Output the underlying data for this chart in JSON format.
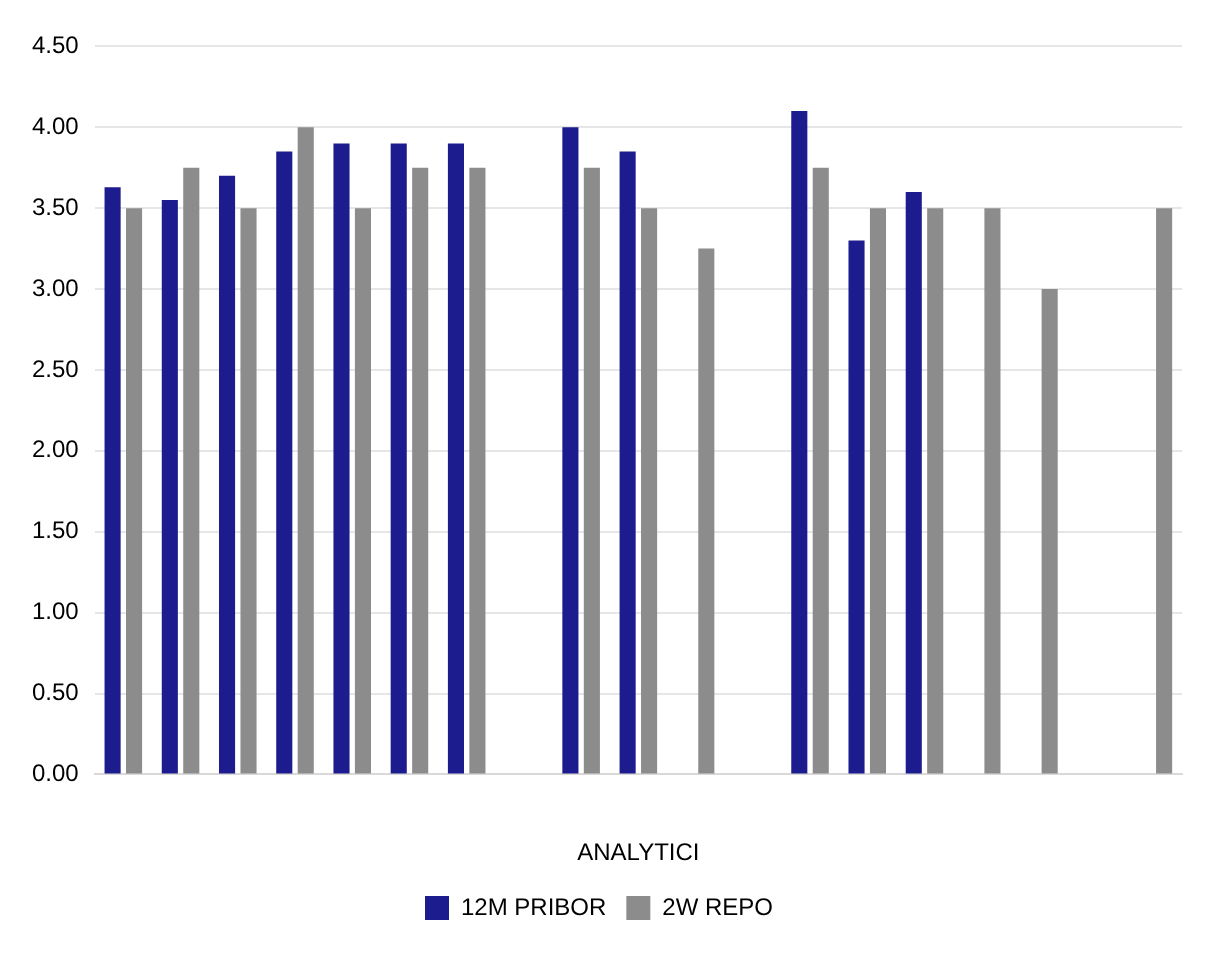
{
  "chart_data": {
    "type": "bar",
    "xlabel": "ANALYTICI",
    "categories": [
      null,
      null,
      null,
      null,
      null,
      null,
      null,
      null,
      null,
      null,
      null,
      null,
      null,
      null,
      null,
      null,
      null,
      null,
      null
    ],
    "series": [
      {
        "name": "12M PRIBOR",
        "color": "#1c1c8e",
        "values": [
          3.63,
          3.55,
          3.7,
          3.85,
          3.9,
          3.9,
          3.9,
          null,
          4.0,
          3.85,
          null,
          null,
          4.1,
          3.3,
          3.6,
          null,
          null,
          null,
          null
        ]
      },
      {
        "name": "2W REPO",
        "color": "#8c8c8c",
        "values": [
          3.5,
          3.75,
          3.5,
          4.0,
          3.5,
          3.75,
          3.75,
          null,
          3.75,
          3.5,
          3.25,
          null,
          3.75,
          3.5,
          3.5,
          3.5,
          3.0,
          null,
          3.5
        ]
      }
    ],
    "ylim": [
      0,
      4.5
    ],
    "yticks": [
      {
        "value": 0,
        "label": "0.00"
      },
      {
        "value": 0.5,
        "label": "0.50"
      },
      {
        "value": 1,
        "label": "1.00"
      },
      {
        "value": 1.5,
        "label": "1.50"
      },
      {
        "value": 2,
        "label": "2.00"
      },
      {
        "value": 2.5,
        "label": "2.50"
      },
      {
        "value": 3,
        "label": "3.00"
      },
      {
        "value": 3.5,
        "label": "3.50"
      },
      {
        "value": 4,
        "label": "4.00"
      },
      {
        "value": 4.5,
        "label": "4.50"
      }
    ],
    "grid": "y",
    "legend": "bottom"
  }
}
